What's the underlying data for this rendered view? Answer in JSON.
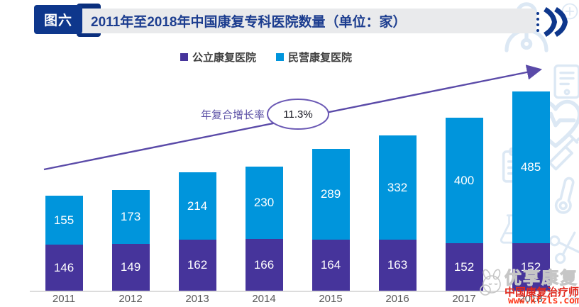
{
  "header": {
    "badge_label": "图六",
    "title": "2011年至2018年中国康复专科医院数量（单位：家）",
    "chevrons_icon": "double-chevron-right-icon"
  },
  "legend": {
    "items": [
      {
        "label": "公立康复医院",
        "color": "#46349B"
      },
      {
        "label": "民营康复医院",
        "color": "#0095DC"
      }
    ]
  },
  "annotation": {
    "label": "年复合增长率",
    "value": "11.3%"
  },
  "chart_data": {
    "type": "bar",
    "stacked": true,
    "title": "2011年至2018年中国康复专科医院数量（单位：家）",
    "unit": "家",
    "categories": [
      "2011",
      "2012",
      "2013",
      "2014",
      "2015",
      "2016",
      "2017",
      "2018"
    ],
    "series": [
      {
        "name": "公立康复医院",
        "color": "#46349B",
        "values": [
          146,
          149,
          162,
          166,
          164,
          163,
          152,
          152
        ]
      },
      {
        "name": "民营康复医院",
        "color": "#0095DC",
        "values": [
          155,
          173,
          214,
          230,
          289,
          332,
          400,
          485
        ]
      }
    ],
    "totals": [
      301,
      322,
      376,
      396,
      453,
      495,
      552,
      637
    ],
    "cagr": "11.3%",
    "data_labels": true,
    "grid": false,
    "legend_position": "top",
    "ylim": [
      0,
      680
    ]
  },
  "watermark": {
    "logo_icon": "mascot-rabbit-icon",
    "brand": "优享康复",
    "line1": "中国康复治疗师",
    "line2": "www.kfzls.com"
  },
  "background_pattern": {
    "color": "#DCE8F4",
    "icons": [
      "doctor-icon",
      "plus-circle-icon",
      "tablet-icon",
      "heart-pulse-icon",
      "clipboard-icon",
      "syringe-icon",
      "thermometer-icon",
      "flask-icon",
      "scissors-icon",
      "drop-icon"
    ]
  },
  "colors": {
    "header_blue": "#0E378C",
    "title_bar_bg": "#E9EAEC",
    "title_text": "#1C3D8F",
    "arrow_purple": "#5A4AA8",
    "axis_label": "#595959",
    "legend_text": "#3F3F3F",
    "bar_public": "#46349B",
    "bar_private": "#0095DC"
  }
}
